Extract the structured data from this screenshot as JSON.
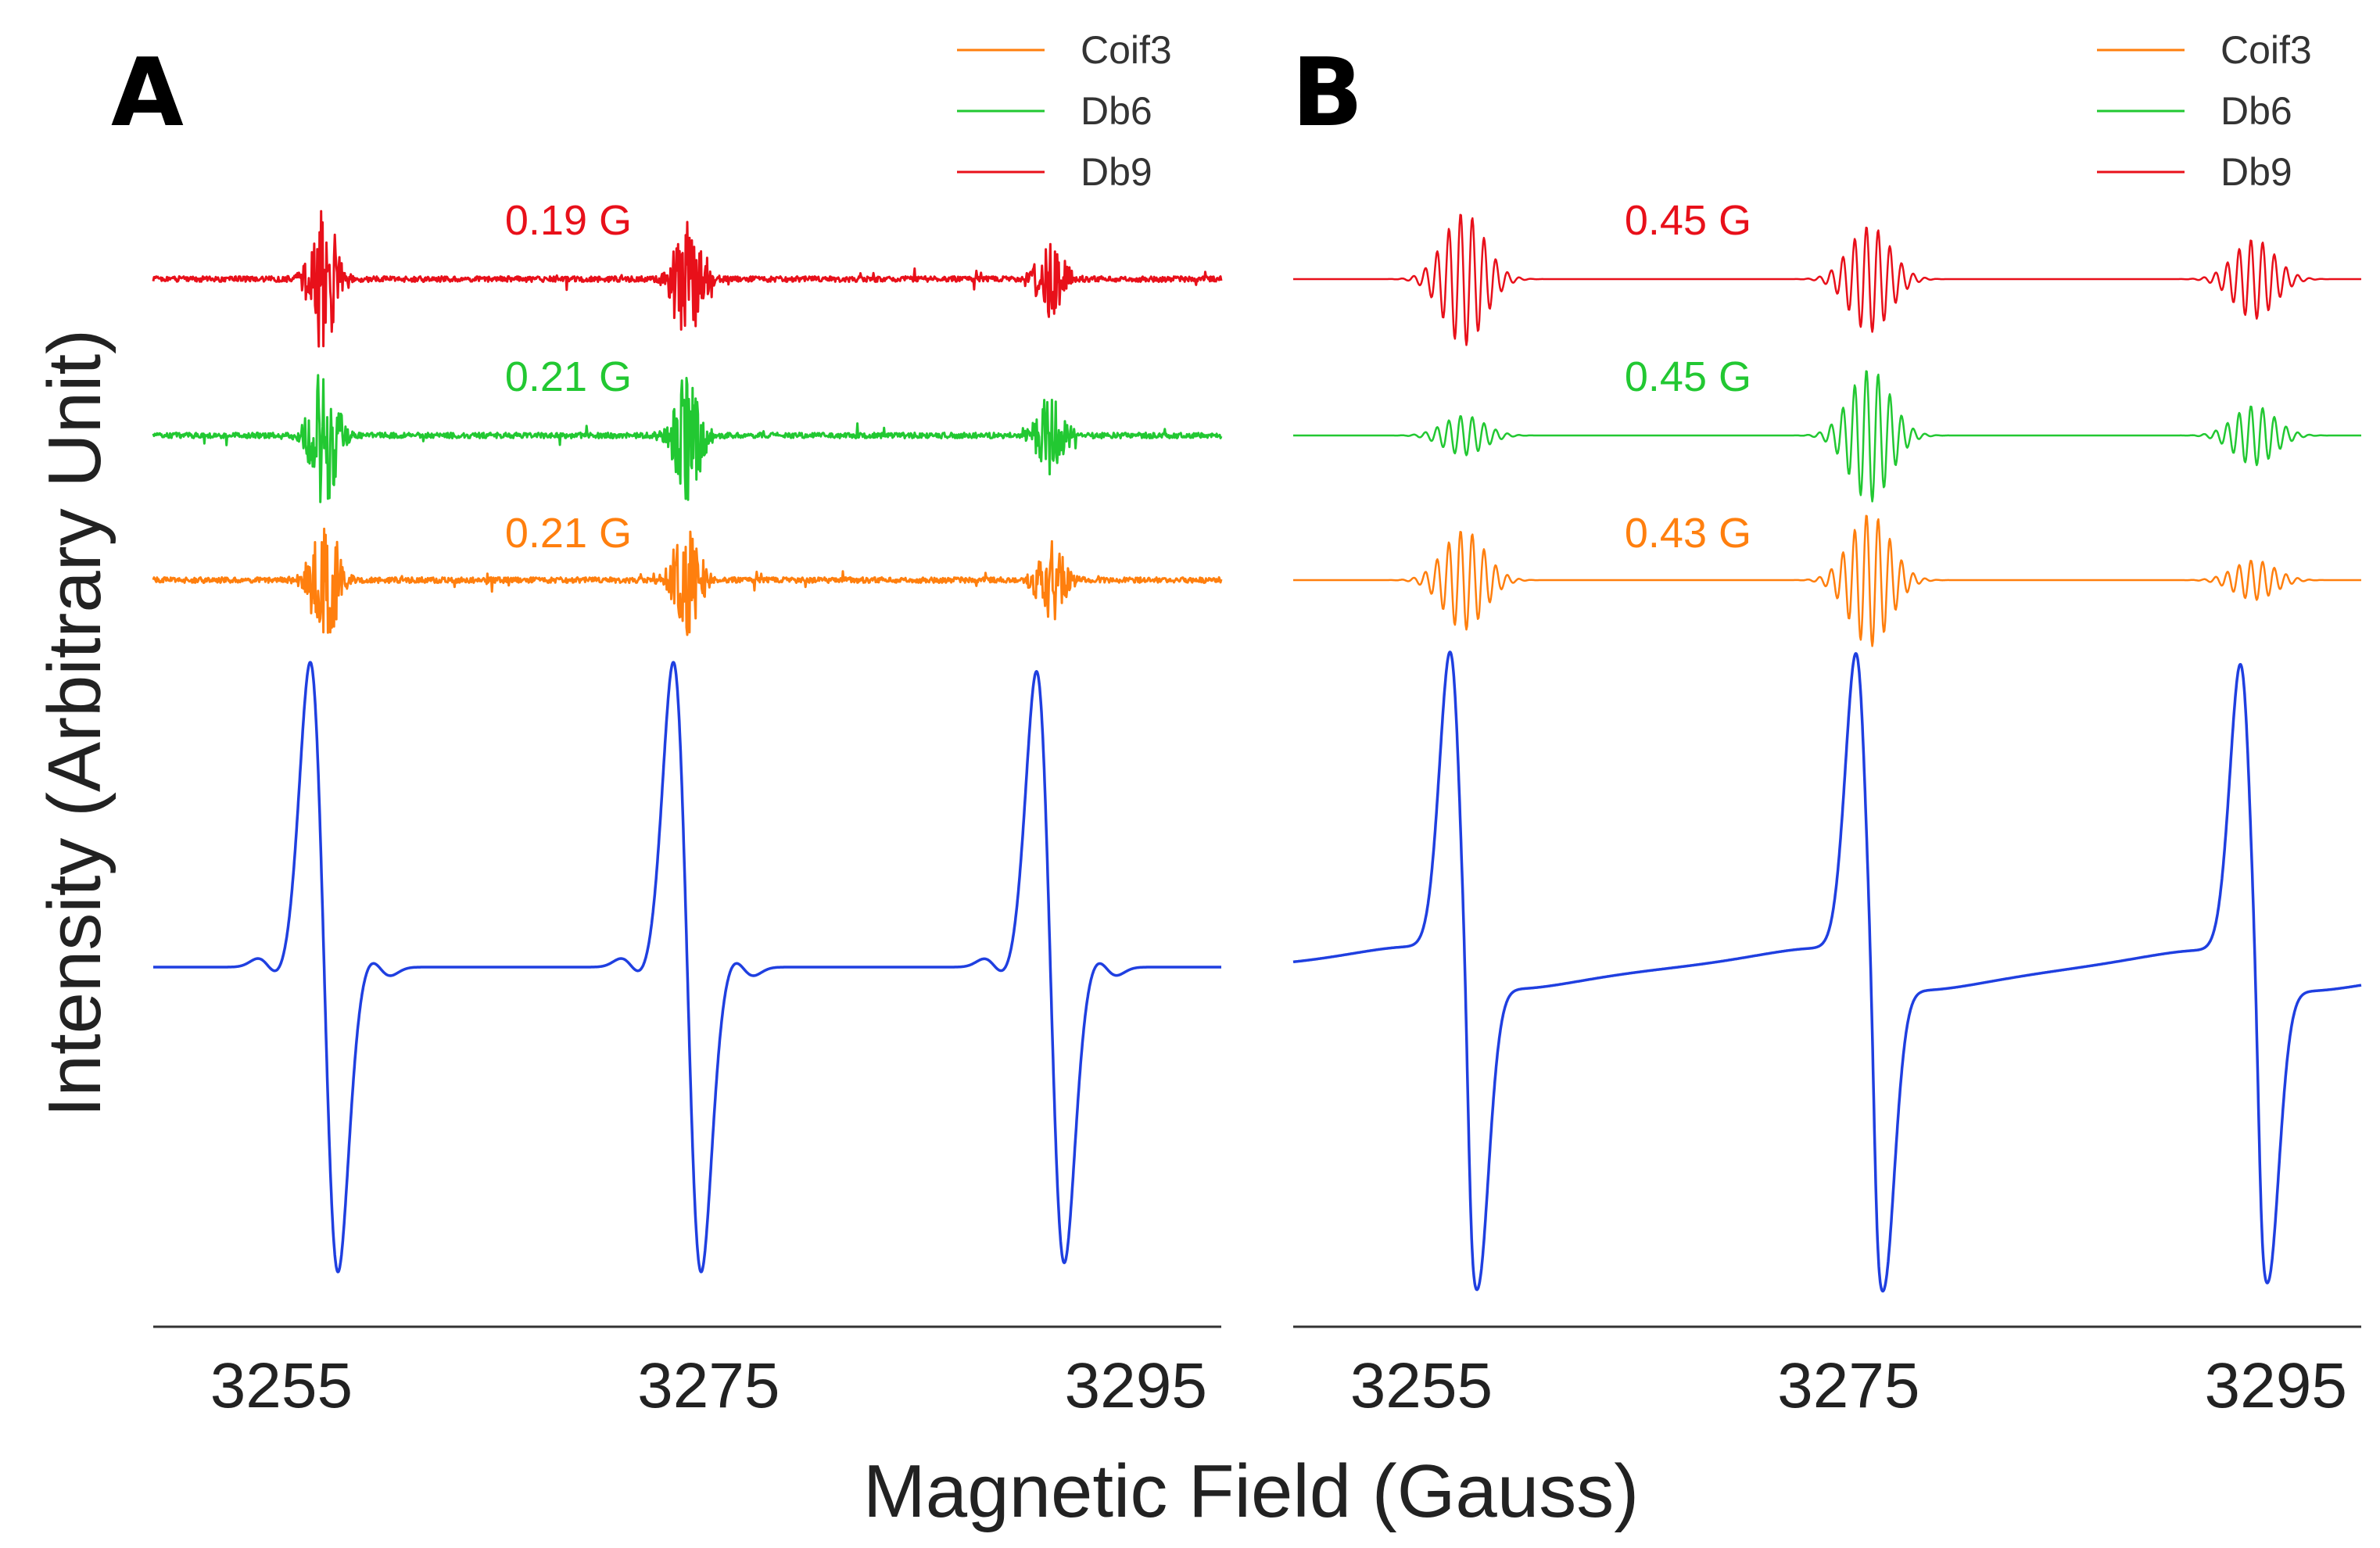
{
  "chart_data": {
    "type": "line",
    "xlabel": "Magnetic Field (Gauss)",
    "ylabel": "Intensity (Arbitrary Unit)",
    "xticks": [
      3255,
      3275,
      3295
    ],
    "xlim": [
      3249,
      3299
    ],
    "colors": {
      "Coif3": "#ff7f0e",
      "Db6": "#22c832",
      "Db9": "#e8101a",
      "spectrum": "#1f3fe0"
    },
    "panels": [
      {
        "label": "A",
        "legend": [
          "Coif3",
          "Db6",
          "Db9"
        ],
        "peak_centers": [
          3257,
          3274,
          3291
        ],
        "spectrum_amplitudes": [
          1.0,
          1.0,
          0.97
        ],
        "series": [
          {
            "name": "Db9",
            "width_label": "0.19 G",
            "burst_amplitudes": [
              1.0,
              0.95,
              0.55
            ]
          },
          {
            "name": "Db6",
            "width_label": "0.21 G",
            "burst_amplitudes": [
              1.0,
              0.9,
              0.6
            ]
          },
          {
            "name": "Coif3",
            "width_label": "0.21 G",
            "burst_amplitudes": [
              1.0,
              0.85,
              0.6
            ]
          }
        ]
      },
      {
        "label": "B",
        "legend": [
          "Coif3",
          "Db6",
          "Db9"
        ],
        "peak_centers": [
          3257,
          3276,
          3294
        ],
        "spectrum_amplitudes": [
          1.0,
          1.0,
          0.97
        ],
        "series": [
          {
            "name": "Db9",
            "width_label": "0.45 G",
            "burst_amplitudes": [
              1.0,
              0.8,
              0.6
            ]
          },
          {
            "name": "Db6",
            "width_label": "0.45 G",
            "burst_amplitudes": [
              0.3,
              1.0,
              0.45
            ]
          },
          {
            "name": "Coif3",
            "width_label": "0.43 G",
            "burst_amplitudes": [
              0.75,
              1.0,
              0.3
            ]
          }
        ]
      }
    ]
  }
}
